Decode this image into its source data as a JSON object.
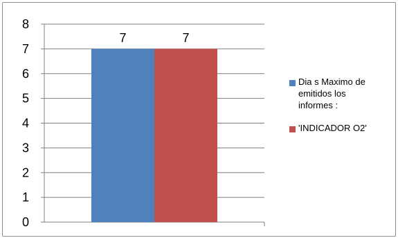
{
  "chart_data": {
    "type": "bar",
    "categories": [
      ""
    ],
    "series": [
      {
        "name": "Dia s Maximo de emitidos los informes :",
        "values": [
          7
        ],
        "color": "#4f81bd"
      },
      {
        "name": "'INDICADOR O2'",
        "values": [
          7
        ],
        "color": "#c0504d"
      }
    ],
    "ylim": [
      0,
      8
    ],
    "yticks": [
      0,
      1,
      2,
      3,
      4,
      5,
      6,
      7,
      8
    ],
    "data_labels": [
      "7",
      "7"
    ],
    "grid": true,
    "legend": "right",
    "title": "",
    "xlabel": "",
    "ylabel": ""
  },
  "legend": {
    "items": [
      {
        "label": "Dia s Maximo de emitidos los informes :",
        "color": "#4f81bd"
      },
      {
        "label": "'INDICADOR O2'",
        "color": "#c0504d"
      }
    ]
  }
}
